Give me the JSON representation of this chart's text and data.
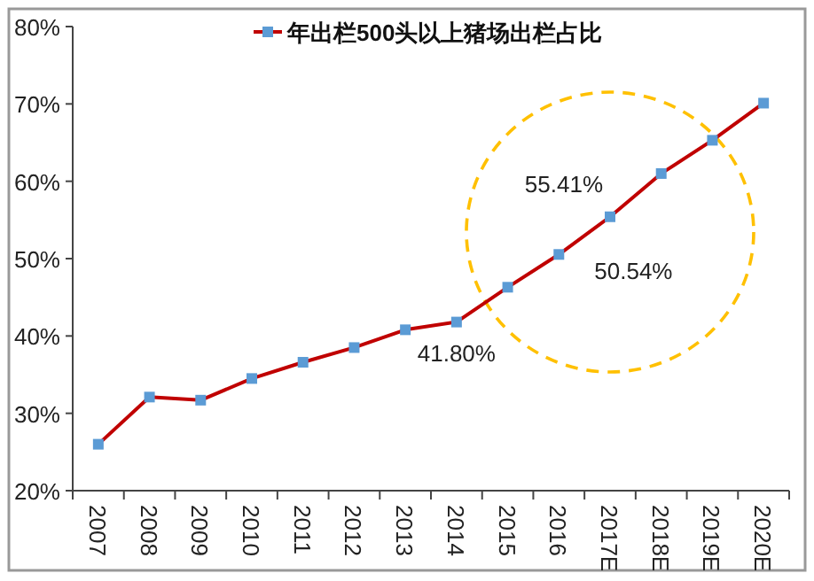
{
  "chart_data": {
    "type": "line",
    "categories": [
      "2007",
      "2008",
      "2009",
      "2010",
      "2011",
      "2012",
      "2013",
      "2014",
      "2015",
      "2016",
      "2017E",
      "2018E",
      "2019E",
      "2020E"
    ],
    "series": [
      {
        "name": "年出栏500头以上猪场出栏占比",
        "color": "#c00000",
        "values": [
          26.0,
          32.1,
          31.7,
          34.5,
          36.6,
          38.5,
          40.8,
          41.8,
          46.3,
          50.54,
          55.41,
          61.0,
          65.3,
          70.1
        ],
        "value_labels": [
          null,
          null,
          null,
          null,
          null,
          null,
          null,
          "41.80%",
          null,
          "50.54%",
          "55.41%",
          null,
          null,
          null
        ]
      }
    ],
    "ylim": [
      20,
      80
    ],
    "yticks": [
      {
        "value": 20,
        "label": "20%"
      },
      {
        "value": 30,
        "label": "30%"
      },
      {
        "value": 40,
        "label": "40%"
      },
      {
        "value": 50,
        "label": "50%"
      },
      {
        "value": 60,
        "label": "60%"
      },
      {
        "value": 70,
        "label": "70%"
      },
      {
        "value": 80,
        "label": "80%"
      }
    ],
    "marker": "square",
    "legend": "top",
    "grid": false
  }
}
